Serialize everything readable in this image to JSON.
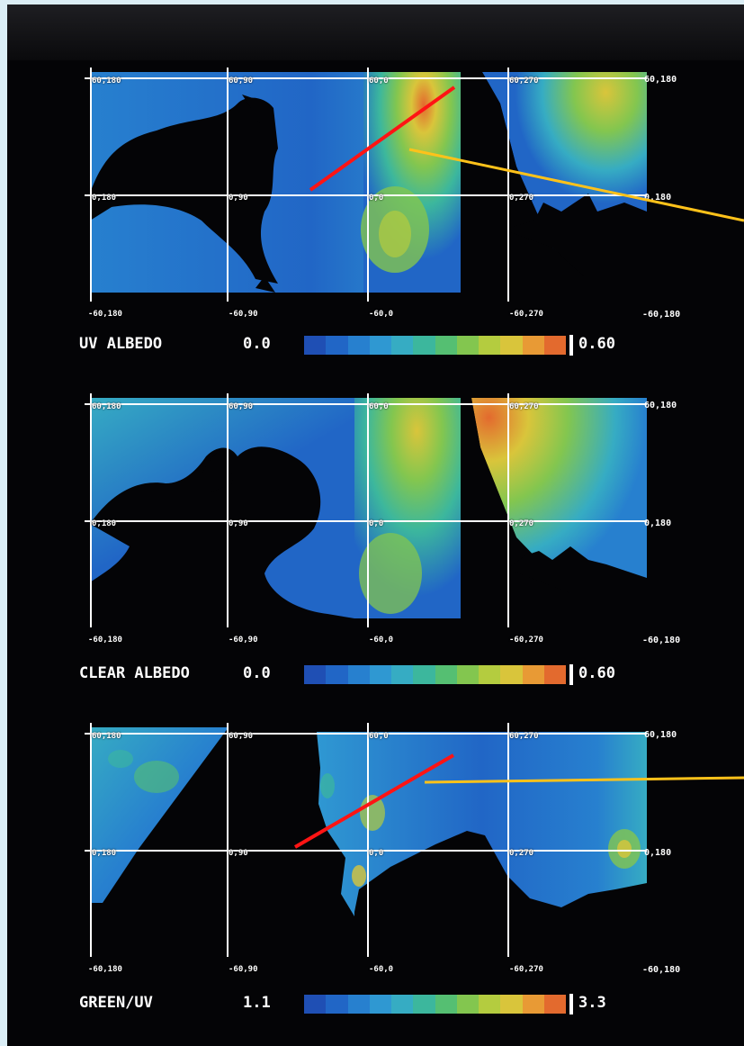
{
  "colors": {
    "scale": [
      "#1f4fb4",
      "#2166c6",
      "#2780cf",
      "#2f98d2",
      "#36acc3",
      "#3cb79d",
      "#55bf72",
      "#83c64f",
      "#b4cc3f",
      "#d9c53b",
      "#e89a35",
      "#e36a2e"
    ],
    "red_line": "#ff1414",
    "yellow_line": "#ffc21a",
    "grid": "#ffffff",
    "background": "#040406"
  },
  "panels": [
    {
      "title": "UV ALBEDO",
      "scale_min": "0.0",
      "scale_max": "0.60",
      "grid_labels": {
        "top": [
          "60,180",
          "60,90",
          "60,0",
          "60,270"
        ],
        "middle": [
          "0,180",
          "0,90",
          "0,0",
          "0,270"
        ],
        "bottom": [
          "-60,180",
          "-60,90",
          "-60,0",
          "-60,270"
        ]
      },
      "right_labels": [
        "60,180",
        "0,180",
        "-60,180"
      ]
    },
    {
      "title": "CLEAR ALBEDO",
      "scale_min": "0.0",
      "scale_max": "0.60",
      "grid_labels": {
        "top": [
          "60,180",
          "60,90",
          "60,0",
          "60,270"
        ],
        "middle": [
          "0,180",
          "0,90",
          "0,0",
          "0,270"
        ],
        "bottom": [
          "-60,180",
          "-60,90",
          "-60,0",
          "-60,270"
        ]
      },
      "right_labels": [
        "60,180",
        "0,180",
        "-60,180"
      ]
    },
    {
      "title": "GREEN/UV",
      "scale_min": "1.1",
      "scale_max": "3.3",
      "grid_labels": {
        "top": [
          "60,180",
          "60,90",
          "60,0",
          "60,270"
        ],
        "middle": [
          "0,180",
          "0,90",
          "0,0",
          "0,270"
        ],
        "bottom": [
          "-60,180",
          "-60,90",
          "-60,0",
          "-60,270"
        ]
      },
      "right_labels": [
        "60,180",
        "0,180",
        "-60,180"
      ]
    }
  ]
}
